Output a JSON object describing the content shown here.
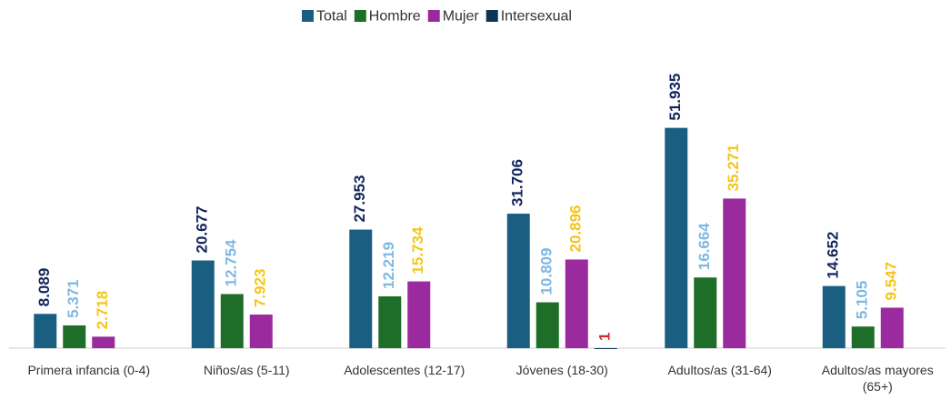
{
  "chart_data": {
    "type": "bar",
    "categories": [
      "Primera infancia (0-4)",
      "Niños/as (5-11)",
      "Adolescentes (12-17)",
      "Jóvenes (18-30)",
      "Adultos/as (31-64)",
      "Adultos/as mayores (65+)"
    ],
    "series": [
      {
        "name": "Total",
        "color": "#1a5f82",
        "label_color": "#13255c",
        "values": [
          8089,
          20677,
          27953,
          31706,
          51935,
          14652
        ],
        "value_labels": [
          "8.089",
          "20.677",
          "27.953",
          "31.706",
          "51.935",
          "14.652"
        ]
      },
      {
        "name": "Hombre",
        "color": "#1e6e2a",
        "label_color": "#7db8e2",
        "values": [
          5371,
          12754,
          12219,
          10809,
          16664,
          5105
        ],
        "value_labels": [
          "5.371",
          "12.754",
          "12.219",
          "10.809",
          "16.664",
          "5.105"
        ]
      },
      {
        "name": "Mujer",
        "color": "#9b2a9e",
        "label_color": "#f5c518",
        "values": [
          2718,
          7923,
          15734,
          20896,
          35271,
          9547
        ],
        "value_labels": [
          "2.718",
          "7.923",
          "15.734",
          "20.896",
          "35.271",
          "9.547"
        ]
      },
      {
        "name": "Intersexual",
        "color": "#0d3552",
        "label_color": "#d62828",
        "values": [
          null,
          null,
          null,
          1,
          null,
          null
        ],
        "value_labels": [
          null,
          null,
          null,
          "1",
          null,
          null
        ]
      }
    ],
    "ylim": [
      0,
      60000
    ],
    "legend": "top"
  }
}
